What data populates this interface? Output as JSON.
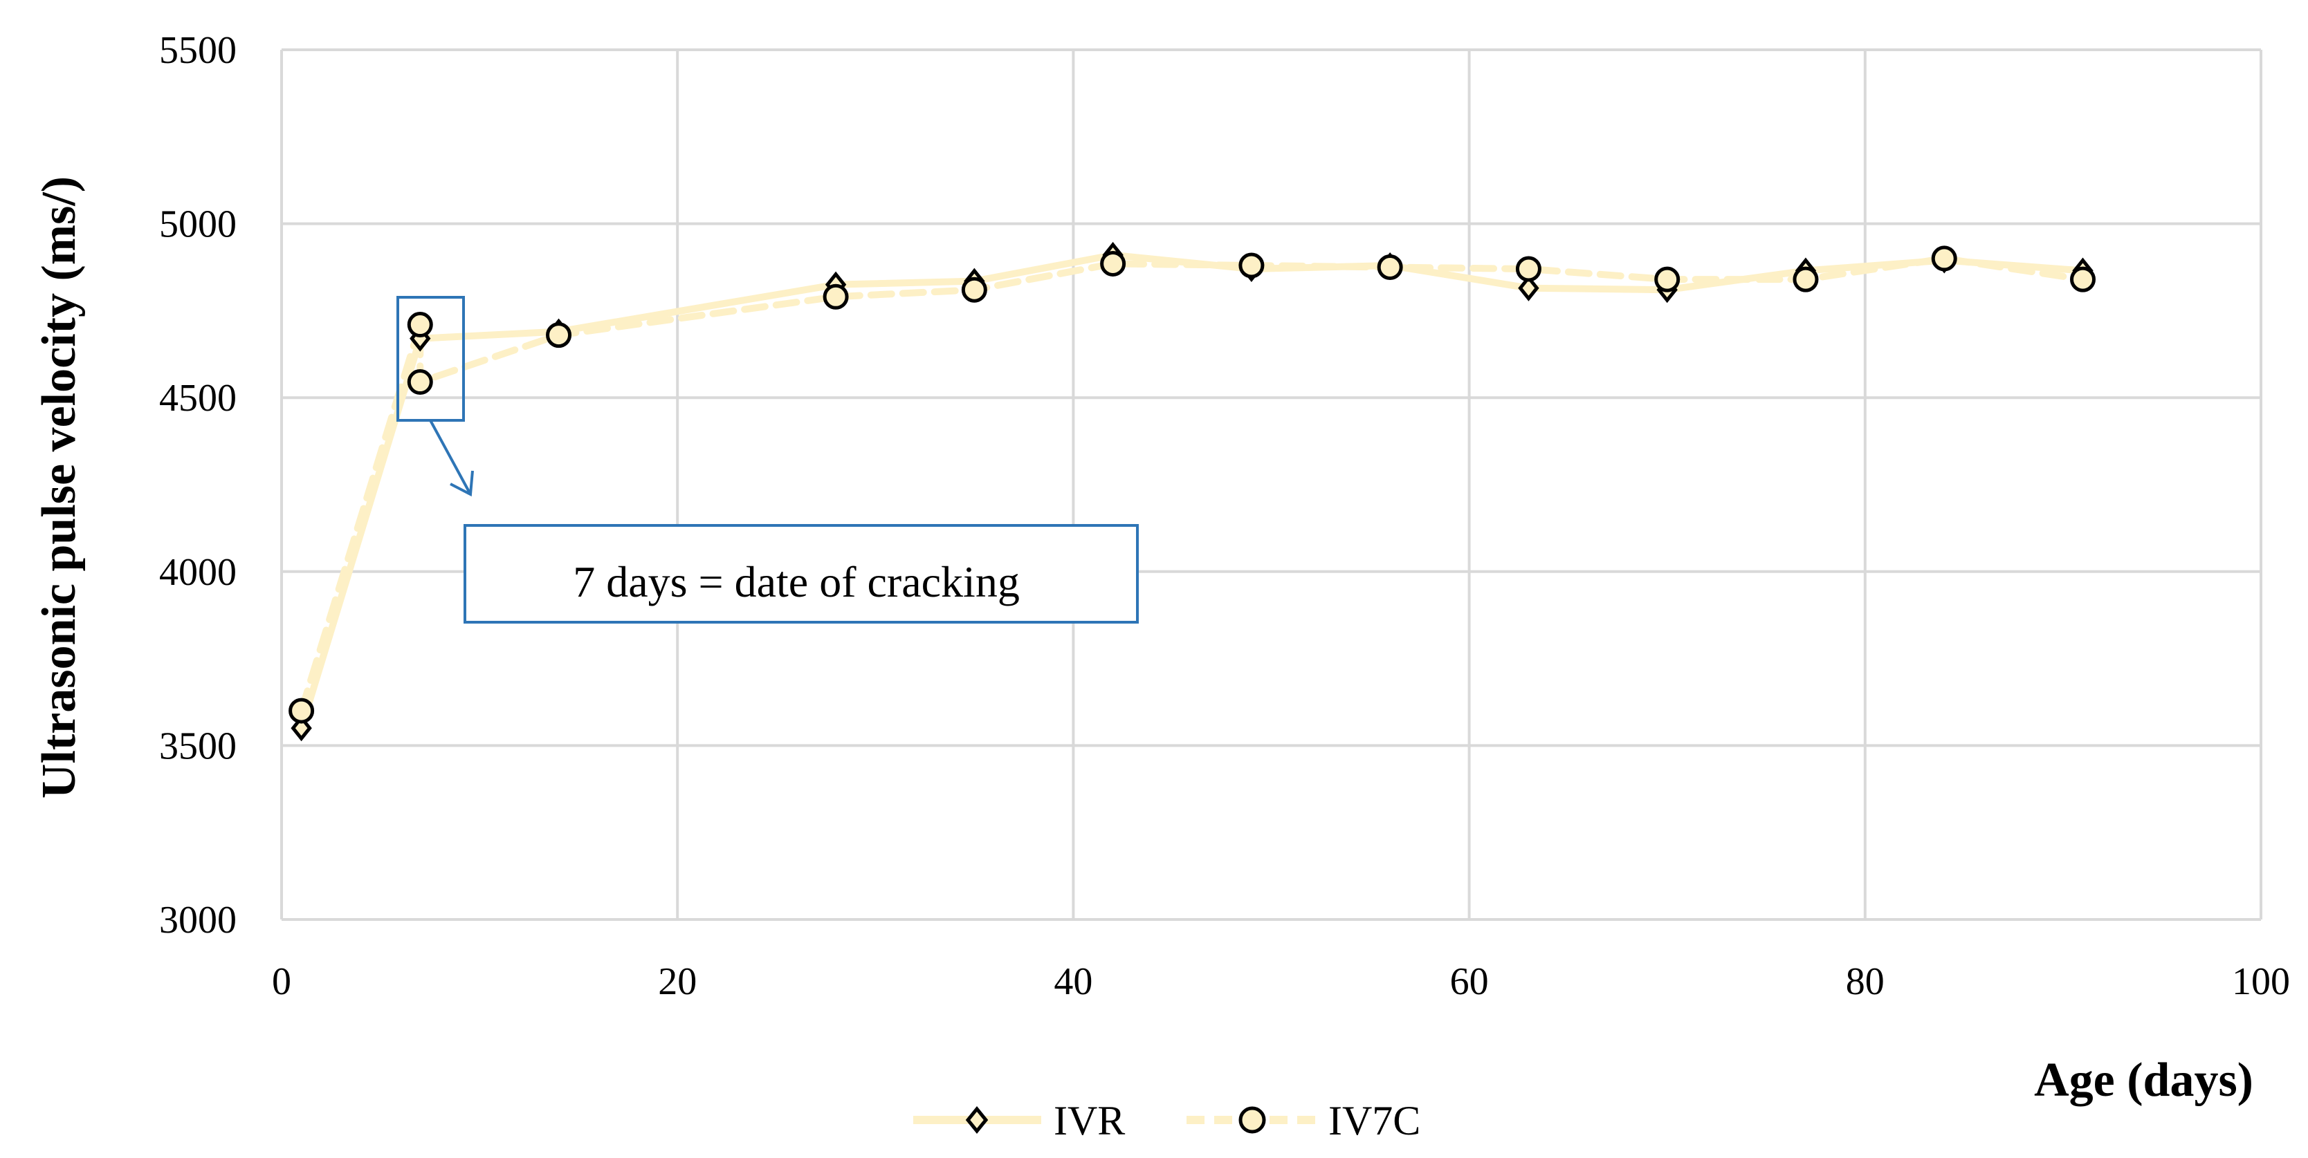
{
  "chart_data": {
    "type": "line",
    "title": "",
    "xlabel": "Age (days)",
    "ylabel": "Ultrasonic pulse velocity (ms/)",
    "xlim": [
      0,
      100
    ],
    "ylim": [
      3000,
      5500
    ],
    "xticks": [
      "0",
      "20",
      "40",
      "60",
      "80",
      "100"
    ],
    "yticks": [
      "3000",
      "3500",
      "4000",
      "4500",
      "5000",
      "5500"
    ],
    "grid": true,
    "legend_position": "bottom",
    "series": [
      {
        "name": "IVR",
        "marker": "diamond",
        "line_style": "solid",
        "color": "#fdf0c6",
        "x": [
          1,
          7,
          14,
          28,
          35,
          42,
          49,
          56,
          63,
          70,
          77,
          84,
          91
        ],
        "y": [
          3550,
          4670,
          4690,
          4825,
          4835,
          4910,
          4870,
          4880,
          4815,
          4810,
          4865,
          4895,
          4865
        ]
      },
      {
        "name": "IV7C",
        "marker": "circle",
        "line_style": "dashed",
        "color": "#fdf0c6",
        "x": [
          1,
          7,
          7,
          14,
          28,
          35,
          42,
          49,
          56,
          63,
          70,
          77,
          84,
          91
        ],
        "y": [
          3600,
          4710,
          4545,
          4680,
          4790,
          4810,
          4885,
          4880,
          4875,
          4870,
          4840,
          4840,
          4900,
          4840
        ]
      }
    ],
    "annotation": {
      "text": "7 days = date of cracking",
      "x": 7,
      "color": "#2e75b6"
    }
  }
}
